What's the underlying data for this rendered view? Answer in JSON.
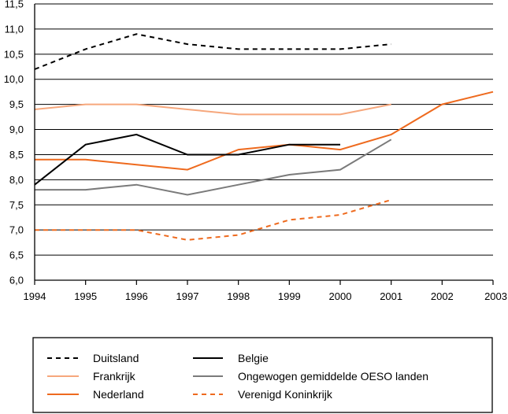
{
  "chart_data": {
    "type": "line",
    "title": "",
    "xlabel": "",
    "ylabel": "",
    "x": [
      1994,
      1995,
      1996,
      1997,
      1998,
      1999,
      2000,
      2001,
      2002,
      2003
    ],
    "x_tick_labels": [
      "1994",
      "1995",
      "1996",
      "1997",
      "1998",
      "1999",
      "2000",
      "2001",
      "2002",
      "2003"
    ],
    "ylim": [
      6.0,
      11.5
    ],
    "y_ticks": [
      6.0,
      6.5,
      7.0,
      7.5,
      8.0,
      8.5,
      9.0,
      9.5,
      10.0,
      10.5,
      11.0,
      11.5
    ],
    "y_tick_labels": [
      "6,0",
      "6,5",
      "7,0",
      "7,5",
      "8,0",
      "8,5",
      "9,0",
      "9,5",
      "10,0",
      "10,5",
      "11,0",
      "11,5"
    ],
    "grid": "horizontal",
    "legend_position": "bottom",
    "series": [
      {
        "name": "Duitsland",
        "color": "#000000",
        "dash": "dashed",
        "values": [
          10.2,
          10.6,
          10.9,
          10.7,
          10.6,
          10.6,
          10.6,
          10.7,
          null,
          null
        ]
      },
      {
        "name": "Frankrijk",
        "color": "#f6a77c",
        "dash": "solid",
        "values": [
          9.4,
          9.5,
          9.5,
          9.4,
          9.3,
          9.3,
          9.3,
          9.5,
          null,
          null
        ]
      },
      {
        "name": "Nederland",
        "color": "#ee6a1e",
        "dash": "solid",
        "values": [
          8.4,
          8.4,
          8.3,
          8.2,
          8.6,
          8.7,
          8.6,
          8.9,
          9.5,
          9.75
        ]
      },
      {
        "name": "Belgie",
        "color": "#000000",
        "dash": "solid",
        "values": [
          7.9,
          8.7,
          8.9,
          8.5,
          8.5,
          8.7,
          8.7,
          null,
          null,
          null
        ]
      },
      {
        "name": "Ongewogen gemiddelde OESO landen",
        "color": "#7a7a7a",
        "dash": "solid",
        "values": [
          7.8,
          7.8,
          7.9,
          7.7,
          7.9,
          8.1,
          8.2,
          8.8,
          null,
          null
        ]
      },
      {
        "name": "Verenigd Koninkrijk",
        "color": "#ee6a1e",
        "dash": "dashed",
        "values": [
          7.0,
          7.0,
          7.0,
          6.8,
          6.9,
          7.2,
          7.3,
          7.6,
          null,
          null
        ]
      }
    ]
  }
}
